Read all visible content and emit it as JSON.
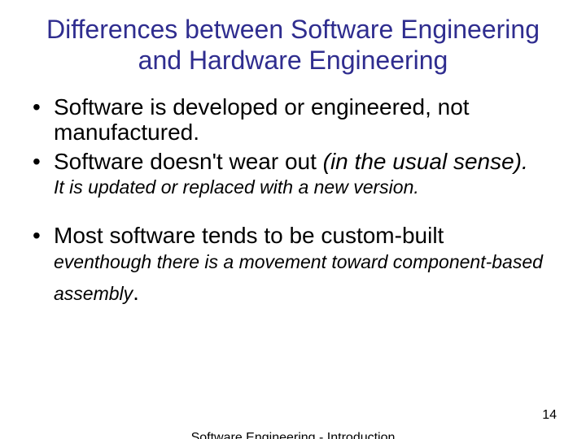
{
  "title_color": "#2f2d8f",
  "body_color": "#000000",
  "background_color": "#ffffff",
  "title_fontsize": 32,
  "body_fontsize": 28,
  "sub_fontsize": 23,
  "footer_fontsize": 16,
  "title": "Differences between Software Engineering and Hardware Engineering",
  "bullets": {
    "b1": {
      "text": "Software is developed or engineered, not manufactured."
    },
    "b2": {
      "text_a": "Software doesn't wear out ",
      "text_b": "(in the usual sense).",
      "sub": "It is updated or replaced with a new version."
    },
    "b3": {
      "text": "Most software tends to be custom-built",
      "sub_a": "eventhough there is a movement toward component-based assembly",
      "sub_b": "."
    }
  },
  "footer": {
    "center": "Software Engineering - Introduction",
    "page": "14"
  }
}
